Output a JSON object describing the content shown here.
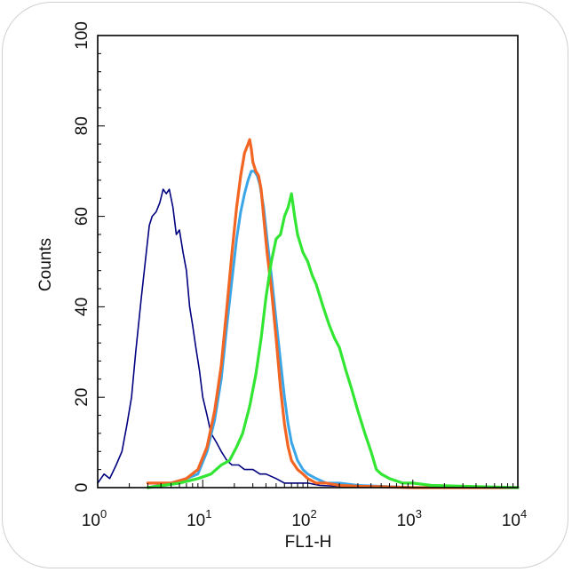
{
  "chart_data": {
    "type": "line",
    "xlabel": "FL1-H",
    "ylabel": "Counts",
    "xscale": "log",
    "xlim": [
      1,
      10000
    ],
    "ylim": [
      0,
      100
    ],
    "grid": false,
    "x_ticks": [
      {
        "base": "10",
        "exp": "0"
      },
      {
        "base": "10",
        "exp": "1"
      },
      {
        "base": "10",
        "exp": "2"
      },
      {
        "base": "10",
        "exp": "3"
      },
      {
        "base": "10",
        "exp": "4"
      }
    ],
    "y_ticks": [
      "0",
      "20",
      "40",
      "60",
      "80",
      "100"
    ],
    "series": [
      {
        "color": "#000080",
        "stroke": 1.6,
        "x": [
          1.0,
          1.15,
          1.3,
          1.5,
          1.7,
          1.9,
          2.1,
          2.3,
          2.6,
          2.9,
          3.1,
          3.3,
          3.6,
          3.9,
          4.2,
          4.5,
          4.8,
          5.2,
          5.6,
          6.0,
          6.5,
          7.0,
          7.5,
          8.0,
          8.6,
          9.3,
          10.0,
          11.0,
          12.0,
          13.5,
          15.0,
          17.0,
          19.0,
          22.0,
          25.0,
          30.0,
          35.0,
          40.0,
          50.0,
          60.0,
          80.0,
          100,
          130,
          200,
          400,
          1000,
          10000
        ],
        "y": [
          1,
          3,
          2,
          5,
          8,
          14,
          20,
          30,
          42,
          52,
          58,
          60,
          61,
          63,
          66,
          65,
          66,
          62,
          56,
          57,
          52,
          48,
          40,
          36,
          31,
          26,
          20,
          16,
          12,
          10,
          8,
          6,
          5,
          5,
          4,
          4,
          3,
          3,
          2,
          1,
          1,
          1,
          0.5,
          0.3,
          0.2,
          0,
          0
        ]
      },
      {
        "color": "#3aa6e8",
        "stroke": 3,
        "x": [
          3.0,
          5.0,
          7.0,
          9.0,
          11.0,
          13.0,
          15.0,
          17.0,
          19.0,
          21.0,
          23.0,
          25.0,
          27.0,
          29.0,
          31.0,
          33.0,
          35.0,
          38.0,
          41.0,
          45.0,
          50.0,
          55.0,
          60.0,
          65.0,
          70.0,
          80.0,
          90.0,
          100,
          120,
          150,
          200,
          300,
          500,
          1000,
          10000
        ],
        "y": [
          0,
          1,
          2,
          3,
          8,
          15,
          24,
          36,
          46,
          55,
          61,
          65,
          68,
          70,
          70,
          69,
          67,
          62,
          55,
          47,
          37,
          28,
          20,
          14,
          10,
          6,
          4,
          3,
          2,
          1,
          1,
          0.5,
          0.3,
          0,
          0
        ]
      },
      {
        "color": "#f26522",
        "stroke": 3.2,
        "x": [
          3.0,
          5.0,
          7.0,
          9.0,
          11.0,
          13.0,
          15.0,
          17.0,
          19.0,
          21.0,
          23.0,
          25.0,
          27.0,
          28.0,
          29.0,
          30.0,
          32.0,
          34.0,
          36.0,
          38.0,
          41.0,
          45.0,
          50.0,
          55.0,
          60.0,
          65.0,
          70.0,
          80.0,
          90.0,
          100,
          120,
          150,
          200,
          300,
          500,
          1000,
          10000
        ],
        "y": [
          1,
          1,
          2,
          4,
          9,
          17,
          27,
          40,
          52,
          62,
          69,
          74,
          76,
          77,
          75,
          72,
          70,
          69,
          66,
          60,
          52,
          44,
          33,
          22,
          14,
          9,
          6,
          4,
          3,
          2,
          1,
          1,
          0.5,
          0.3,
          0.2,
          0,
          0
        ]
      },
      {
        "color": "#33e633",
        "stroke": 3.2,
        "x": [
          3.0,
          6.0,
          9.0,
          12.0,
          15.0,
          18.0,
          21.0,
          24.0,
          28.0,
          32.0,
          36.0,
          40.0,
          45.0,
          50.0,
          55.0,
          60.0,
          65.0,
          70.0,
          75.0,
          80.0,
          90.0,
          100,
          110,
          120,
          140,
          160,
          180,
          200,
          230,
          260,
          300,
          350,
          400,
          450,
          500,
          600,
          800,
          1000,
          1500,
          10000
        ],
        "y": [
          0,
          1,
          2,
          3,
          5,
          6,
          9,
          12,
          18,
          25,
          33,
          42,
          50,
          55,
          56,
          60,
          62,
          65,
          60,
          56,
          52,
          50,
          47,
          45,
          40,
          36,
          33,
          31,
          26,
          22,
          17,
          12,
          8,
          4,
          3,
          2,
          1,
          1,
          0.5,
          0
        ]
      }
    ]
  }
}
